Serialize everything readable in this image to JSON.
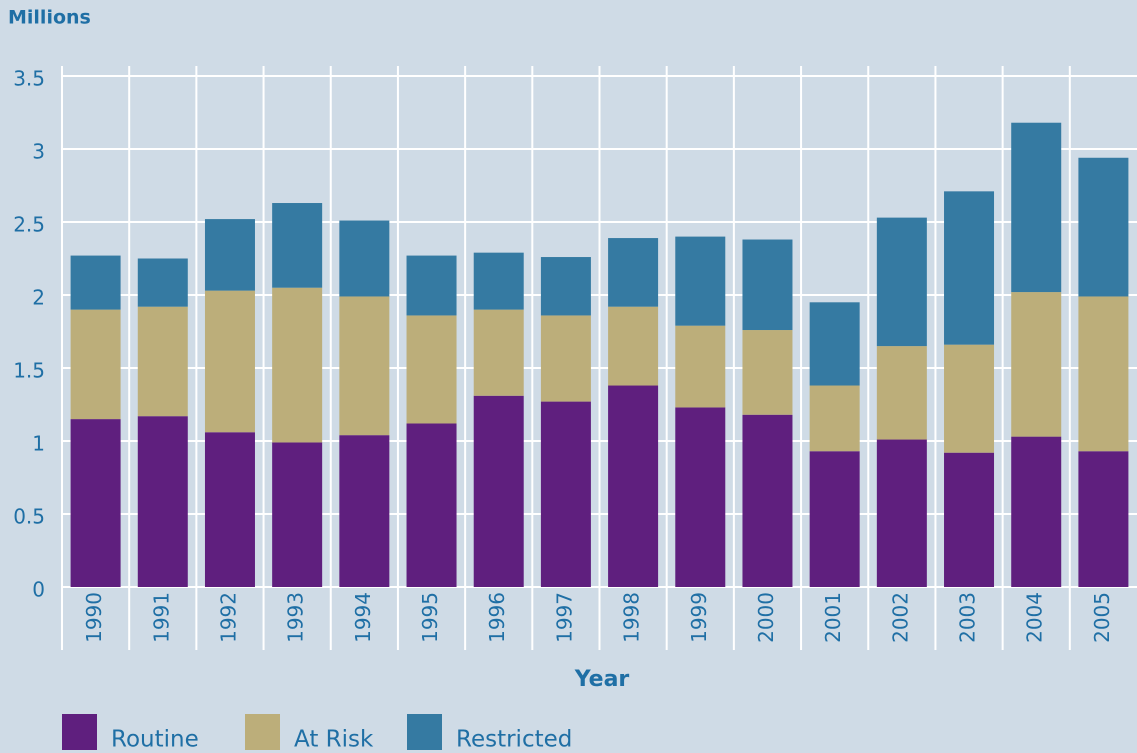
{
  "chart_data": {
    "type": "stacked_bar",
    "title": "Millions",
    "x_label": "Year",
    "categories": [
      "1990",
      "1991",
      "1992",
      "1993",
      "1994",
      "1995",
      "1996",
      "1997",
      "1998",
      "1999",
      "2000",
      "2001",
      "2002",
      "2003",
      "2004",
      "2005"
    ],
    "series": [
      {
        "name": "Routine",
        "color": "#5f1f7e",
        "values": [
          1.15,
          1.17,
          1.06,
          0.99,
          1.04,
          1.12,
          1.31,
          1.27,
          1.38,
          1.23,
          1.18,
          0.93,
          1.01,
          0.92,
          1.03,
          0.93
        ]
      },
      {
        "name": "At Risk",
        "color": "#bcae7a",
        "values": [
          0.75,
          0.75,
          0.97,
          1.06,
          0.95,
          0.74,
          0.59,
          0.59,
          0.54,
          0.56,
          0.58,
          0.45,
          0.64,
          0.74,
          0.99,
          1.06
        ]
      },
      {
        "name": "Restricted",
        "color": "#357aa2",
        "values": [
          0.37,
          0.33,
          0.49,
          0.58,
          0.52,
          0.41,
          0.39,
          0.4,
          0.47,
          0.61,
          0.62,
          0.57,
          0.88,
          1.05,
          1.16,
          0.95
        ]
      }
    ],
    "ylim": [
      0,
      3.5
    ],
    "yticks": [
      0,
      0.5,
      1,
      1.5,
      2,
      2.5,
      3,
      3.5
    ],
    "grid": true
  }
}
